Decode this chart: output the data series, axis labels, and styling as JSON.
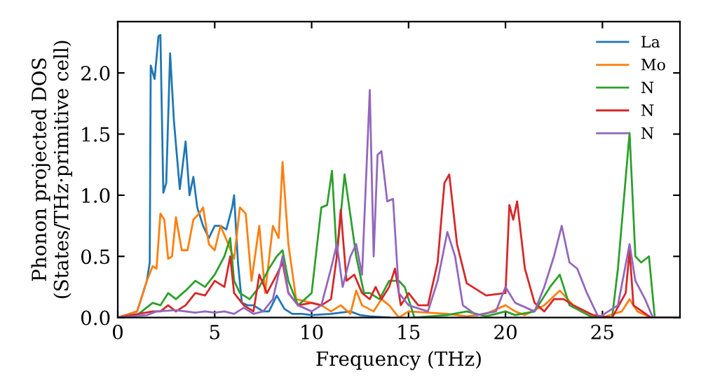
{
  "chart_data": {
    "type": "line",
    "xlabel": "Frequency (THz)",
    "ylabel": "Phonon projected DOS\n(States/THz·primitive cell)",
    "xlim": [
      0,
      29
    ],
    "ylim": [
      0,
      2.42
    ],
    "xticks": [
      0,
      5,
      10,
      15,
      20,
      25
    ],
    "yticks": [
      {
        "value": 0,
        "label": "0.0"
      },
      0.5,
      {
        "value": 1,
        "label": "1.0"
      },
      1.5,
      {
        "value": 2,
        "label": "2.0"
      }
    ],
    "legend": "top right",
    "grid": false,
    "marker": "none",
    "line_style": "solid",
    "series": [
      {
        "name": "La",
        "color": "#1f77b4",
        "x": [
          0,
          1,
          1.5,
          1.65,
          1.7,
          1.9,
          2.1,
          2.2,
          2.35,
          2.5,
          2.7,
          2.9,
          3.2,
          3.5,
          3.7,
          3.9,
          4.1,
          4.4,
          4.7,
          5.0,
          5.3,
          5.6,
          5.9,
          6.0,
          6.2,
          6.4,
          6.7,
          7.0,
          7.5,
          7.8,
          8.2,
          8.6,
          9.0,
          9.5,
          10,
          11,
          12,
          12.5,
          13,
          14
        ],
        "values": [
          0,
          0.05,
          0.3,
          0.45,
          2.06,
          1.95,
          2.3,
          2.31,
          1.02,
          1.1,
          2.16,
          1.6,
          1.05,
          1.44,
          1.0,
          1.15,
          0.9,
          0.75,
          0.65,
          0.75,
          0.75,
          0.72,
          0.9,
          1.0,
          0.45,
          0.12,
          0.1,
          0.1,
          0.05,
          0.05,
          0.18,
          0.07,
          0.03,
          0.03,
          0.02,
          0.03,
          0.05,
          0.02,
          0.01,
          0
        ]
      },
      {
        "name": "Mo",
        "color": "#ff7f0e",
        "x": [
          0,
          1,
          1.5,
          1.8,
          2.0,
          2.2,
          2.4,
          2.6,
          2.8,
          3.0,
          3.3,
          3.6,
          3.9,
          4.2,
          4.4,
          4.7,
          5.0,
          5.3,
          5.7,
          6.0,
          6.3,
          6.6,
          6.9,
          7.3,
          7.6,
          8.0,
          8.3,
          8.5,
          8.8,
          9.2,
          10,
          10.5,
          11,
          11.5,
          12,
          12.3,
          12.6,
          13.2,
          13.6,
          14,
          14.5,
          15,
          17,
          18,
          19,
          20,
          20.5,
          21,
          22,
          22.8,
          23.5,
          24.5,
          25,
          26,
          26.4,
          26.8,
          27.5,
          29
        ],
        "values": [
          0,
          0.05,
          0.3,
          0.42,
          0.4,
          0.85,
          0.8,
          0.48,
          0.5,
          0.82,
          0.55,
          0.55,
          0.8,
          0.85,
          0.9,
          0.6,
          0.55,
          0.75,
          0.6,
          0.48,
          0.9,
          0.85,
          0.3,
          0.75,
          0.2,
          0.75,
          0.65,
          1.27,
          0.6,
          0.15,
          0.12,
          0.1,
          0.05,
          0.1,
          0.03,
          0.22,
          0.1,
          0.05,
          0.15,
          0.1,
          0,
          0.05,
          0.03,
          0.01,
          0.03,
          0.1,
          0.05,
          0.02,
          0.1,
          0.22,
          0.1,
          0.02,
          0,
          0.05,
          0.15,
          0.05,
          0,
          0
        ]
      },
      {
        "name": "N",
        "color": "#2ca02c",
        "x": [
          0,
          1,
          1.8,
          2.2,
          2.6,
          3.0,
          3.5,
          4,
          4.5,
          5.0,
          5.5,
          5.8,
          6.0,
          6.3,
          6.8,
          7.3,
          7.8,
          8.2,
          8.5,
          8.8,
          9.3,
          10,
          10.5,
          10.8,
          11.05,
          11.3,
          11.7,
          12.3,
          12.7,
          13.0,
          13.5,
          14,
          14.5,
          14.8,
          15.3,
          17,
          18,
          19,
          20,
          20.5,
          21.5,
          22.3,
          22.8,
          23.3,
          24.5,
          25.5,
          25.8,
          26.4,
          26.7,
          27,
          27.4,
          27.7,
          29
        ],
        "values": [
          0,
          0.02,
          0.12,
          0.1,
          0.2,
          0.15,
          0.22,
          0.3,
          0.25,
          0.35,
          0.5,
          0.65,
          0.3,
          0.2,
          0.15,
          0.25,
          0.4,
          0.5,
          0.55,
          0.3,
          0.1,
          0.2,
          0.9,
          0.92,
          1.2,
          0.5,
          1.17,
          0.5,
          0.2,
          0.2,
          0.15,
          0.3,
          0.3,
          0.25,
          0,
          0.02,
          0.05,
          0.01,
          0.05,
          0.02,
          0.05,
          0.25,
          0.35,
          0.1,
          0,
          0,
          0.4,
          1.51,
          0.5,
          0.45,
          0.5,
          0,
          0
        ]
      },
      {
        "name": "N",
        "color": "#d62728",
        "x": [
          0,
          1.8,
          2.2,
          2.6,
          3.0,
          3.5,
          4,
          4.5,
          5.0,
          5.5,
          5.8,
          6.0,
          6.5,
          7,
          7.3,
          7.7,
          8.2,
          8.5,
          8.8,
          9.3,
          10,
          10.5,
          11,
          11.3,
          11.5,
          11.8,
          12.2,
          12.6,
          13.0,
          13.3,
          13.6,
          14,
          14.3,
          14.6,
          15,
          15.5,
          16,
          16.5,
          16.85,
          17.1,
          17.5,
          18,
          19,
          20,
          20.2,
          20.4,
          20.6,
          21,
          21.5,
          22,
          22.5,
          23,
          23.5,
          24.5,
          25.5,
          26.2,
          26.4,
          26.6,
          27.5,
          29
        ],
        "values": [
          0,
          0.05,
          0.05,
          0.1,
          0.05,
          0.1,
          0.2,
          0.18,
          0.3,
          0.25,
          0.5,
          0.2,
          0.1,
          0.05,
          0.35,
          0.2,
          0.35,
          0.45,
          0.2,
          0.1,
          0.12,
          0.1,
          0.15,
          0.5,
          0.88,
          0.3,
          0.35,
          0.2,
          0.15,
          0.25,
          0.15,
          0.25,
          0.4,
          0.1,
          0.2,
          0.1,
          0.1,
          0.45,
          1.1,
          1.17,
          0.6,
          0.28,
          0.18,
          0.2,
          0.92,
          0.8,
          0.95,
          0.4,
          0.12,
          0.05,
          0.15,
          0.15,
          0.1,
          0.02,
          0,
          0.2,
          0.55,
          0.1,
          0,
          0
        ]
      },
      {
        "name": "N",
        "color": "#9467bd",
        "x": [
          0,
          1.5,
          2,
          3,
          4,
          4.5,
          5,
          5.5,
          6,
          6.5,
          7,
          7.5,
          8,
          8.5,
          8.8,
          9.3,
          10,
          10.5,
          11,
          11.3,
          11.6,
          12.0,
          12.3,
          12.6,
          13.0,
          13.2,
          13.4,
          13.6,
          13.9,
          14.2,
          14.5,
          15,
          16,
          16.5,
          17,
          17.4,
          17.8,
          18.5,
          19.5,
          20,
          20.5,
          21.5,
          22,
          22.5,
          22.9,
          23.3,
          23.7,
          24.2,
          24.8,
          25.8,
          26.4,
          26.7,
          27.2,
          27.6,
          29
        ],
        "values": [
          0,
          0.02,
          0.05,
          0.06,
          0.04,
          0.05,
          0.04,
          0.05,
          0.03,
          0.08,
          0.03,
          0.05,
          0.15,
          0.5,
          0.2,
          0.1,
          0.05,
          0.1,
          0.4,
          0.6,
          0.25,
          0.5,
          0.6,
          0.35,
          1.86,
          0.5,
          1.33,
          1.36,
          0.95,
          0.97,
          0.2,
          0.1,
          0.05,
          0.3,
          0.7,
          0.5,
          0.1,
          0.02,
          0.05,
          0.25,
          0.12,
          0.05,
          0.25,
          0.5,
          0.75,
          0.45,
          0.4,
          0.2,
          0,
          0.1,
          0.6,
          0.3,
          0.15,
          0,
          0
        ]
      }
    ]
  }
}
